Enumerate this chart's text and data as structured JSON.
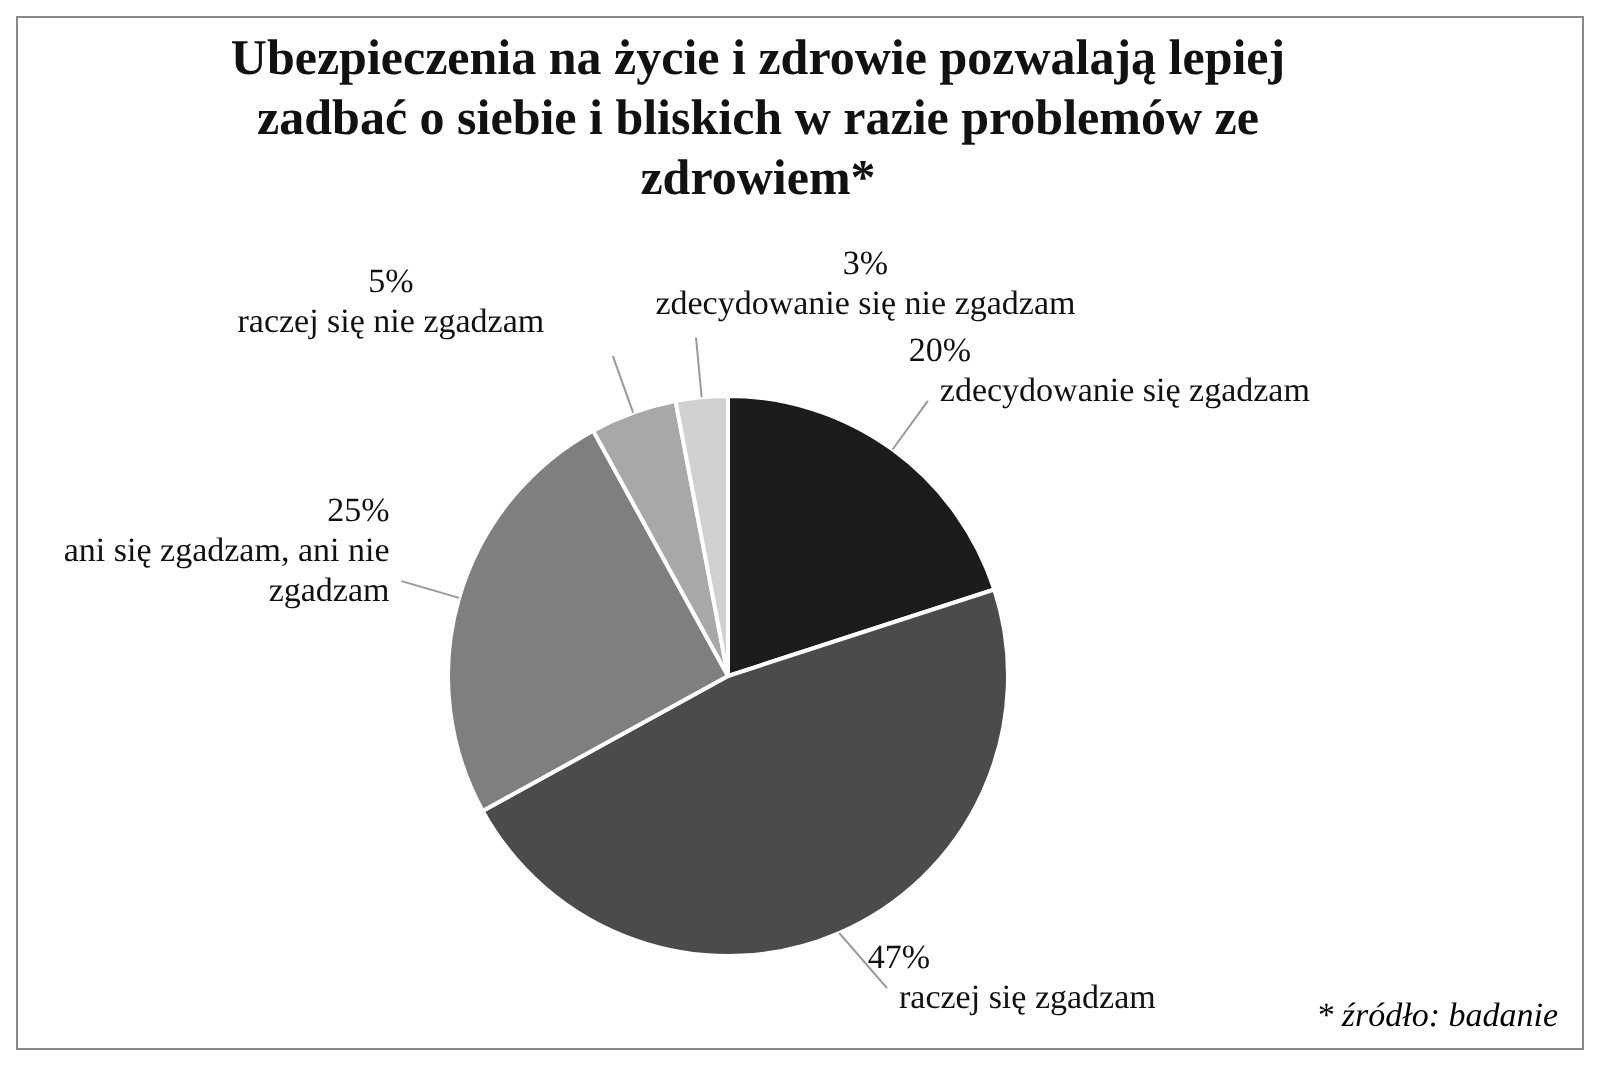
{
  "chart_data": {
    "type": "pie",
    "title": "Ubezpieczenia na życie i zdrowie pozwalają lepiej zadbać o siebie i bliskich w razie problemów ze zdrowiem*",
    "categories": [
      "zdecydowanie się zgadzam",
      "raczej się zgadzam",
      "ani się zgadzam, ani nie zgadzam",
      "raczej się nie zgadzam",
      "zdecydowanie się nie zgadzam"
    ],
    "values": [
      20,
      47,
      25,
      5,
      3
    ],
    "value_labels": [
      "20%",
      "47%",
      "25%",
      "5%",
      "3%"
    ],
    "colors": [
      "#1c1c1c",
      "#4b4b4b",
      "#7f7f7f",
      "#a8a8a8",
      "#d0d0d0"
    ],
    "annotations": [
      "* źródło: badanie"
    ]
  }
}
